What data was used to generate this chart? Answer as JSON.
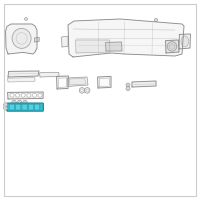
{
  "bg_color": "#ffffff",
  "border_color": "#cccccc",
  "line_color": "#888888",
  "line_color2": "#aaaaaa",
  "highlight_color": "#2ab5c8",
  "highlight_color2": "#5dd5e5",
  "highlight_edge": "#1a8595",
  "lw_main": 0.6,
  "lw_thin": 0.4,
  "lw_thick": 0.7
}
